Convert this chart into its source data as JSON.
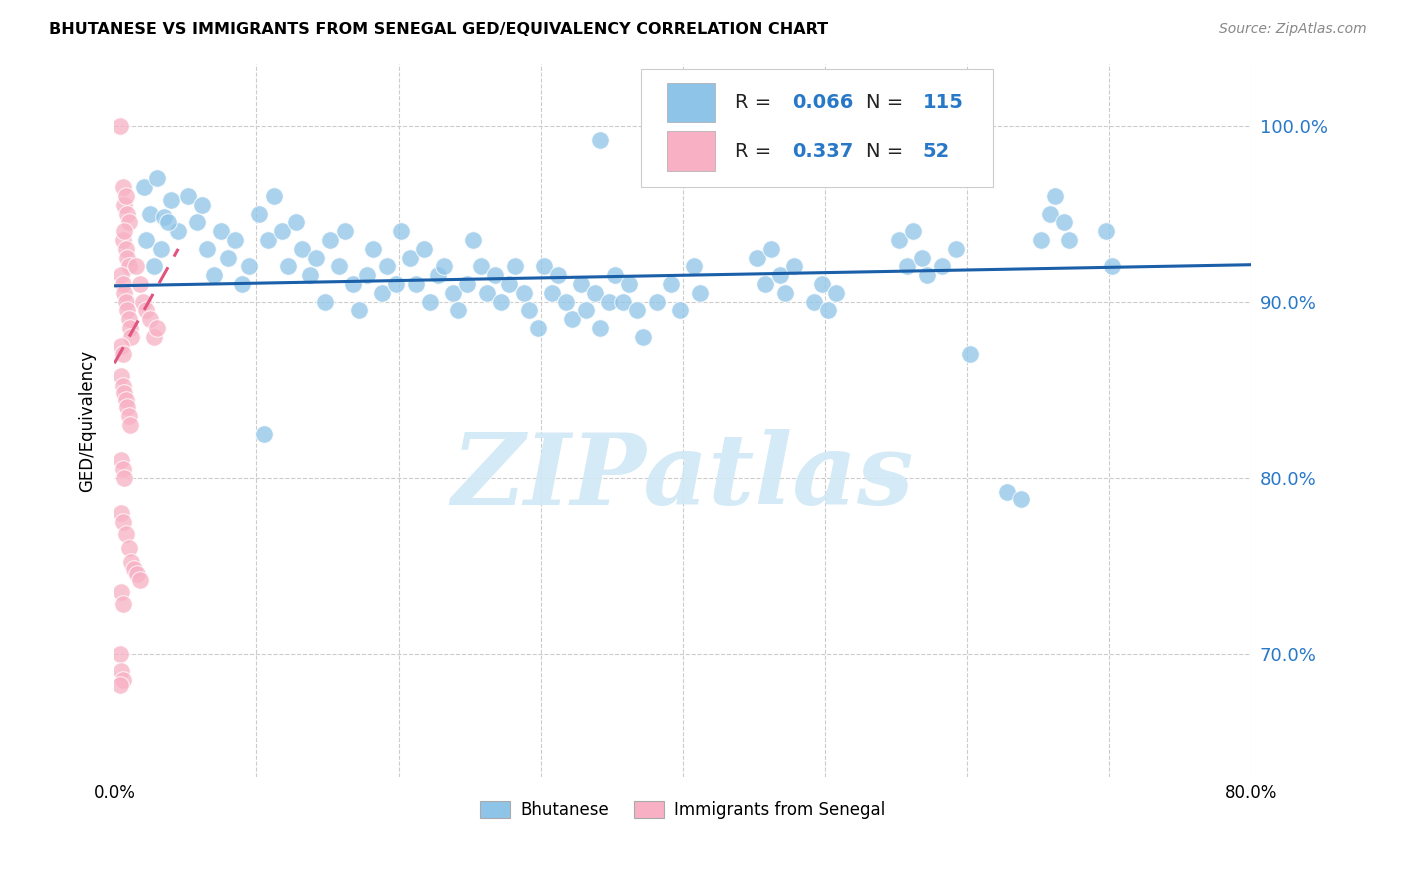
{
  "title": "BHUTANESE VS IMMIGRANTS FROM SENEGAL GED/EQUIVALENCY CORRELATION CHART",
  "source": "Source: ZipAtlas.com",
  "ylabel": "GED/Equivalency",
  "ytick_labels": [
    "70.0%",
    "80.0%",
    "90.0%",
    "100.0%"
  ],
  "ytick_values": [
    0.7,
    0.8,
    0.9,
    1.0
  ],
  "xlim": [
    0.0,
    0.8
  ],
  "ylim": [
    0.63,
    1.035
  ],
  "blue_R": 0.066,
  "blue_N": 115,
  "pink_R": 0.337,
  "pink_N": 52,
  "blue_color": "#8ec4e8",
  "pink_color": "#f7b0c4",
  "blue_line_color": "#1a5fa8",
  "pink_line_color": "#e05580",
  "pink_line_dash": true,
  "watermark": "ZIPatlas",
  "watermark_color": "#d0e8f5",
  "legend_title_blue": "Bhutanese",
  "legend_title_pink": "Immigrants from Senegal",
  "legend_R_N_color": "#2878c8",
  "background_color": "#ffffff",
  "grid_color": "#cccccc",
  "blue_trend_x0": 0.0,
  "blue_trend_y0": 0.909,
  "blue_trend_x1": 0.8,
  "blue_trend_y1": 0.921,
  "pink_trend_x0": 0.0,
  "pink_trend_y0": 0.865,
  "pink_trend_x1": 0.045,
  "pink_trend_y1": 0.93
}
